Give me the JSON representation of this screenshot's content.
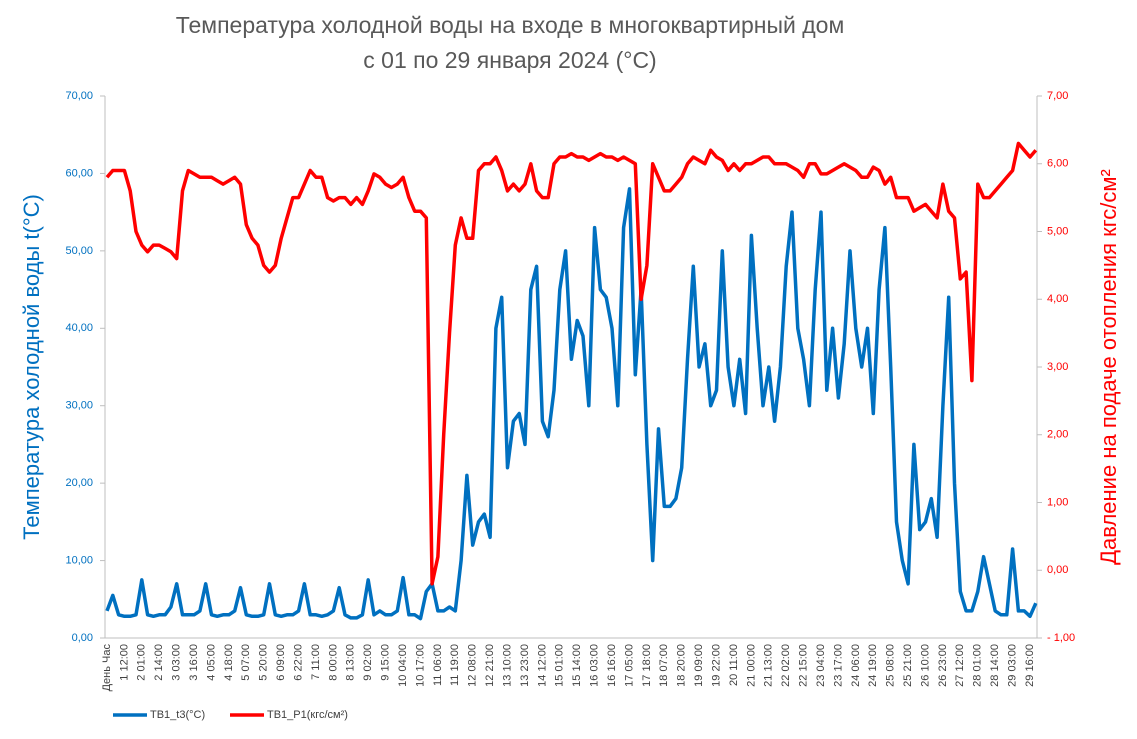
{
  "chart_data": {
    "type": "line",
    "title": "Температура холодной воды на входе в многоквартирный дом",
    "subtitle": "с 01 по 29 января 2024 (°C)",
    "y_label": "Температура холодной воды t(°С)",
    "y2_label": "Давление на подаче отопления  кгс/см²",
    "grid": false,
    "legend": "bottom-left",
    "categories": [
      "День Час",
      null,
      null,
      "1 12:00",
      null,
      null,
      "2 01:00",
      null,
      null,
      "2 14:00",
      null,
      null,
      "3 03:00",
      null,
      null,
      "3 16:00",
      null,
      null,
      "4 05:00",
      null,
      null,
      "4 18:00",
      null,
      null,
      "5 07:00",
      null,
      null,
      "5 20:00",
      null,
      null,
      "6 09:00",
      null,
      null,
      "6 22:00",
      null,
      null,
      "7 11:00",
      null,
      null,
      "8 00:00",
      null,
      null,
      "8 13:00",
      null,
      null,
      "9 02:00",
      null,
      null,
      "9 15:00",
      null,
      null,
      "10 04:00",
      null,
      null,
      "10 17:00",
      null,
      null,
      "11 06:00",
      null,
      null,
      "11 19:00",
      null,
      null,
      "12 08:00",
      null,
      null,
      "12 21:00",
      null,
      null,
      "13 10:00",
      null,
      null,
      "13 23:00",
      null,
      null,
      "14 12:00",
      null,
      null,
      "15 01:00",
      null,
      null,
      "15 14:00",
      null,
      null,
      "16 03:00",
      null,
      null,
      "16 16:00",
      null,
      null,
      "17 05:00",
      null,
      null,
      "17 18:00",
      null,
      null,
      "18 07:00",
      null,
      null,
      "18 20:00",
      null,
      null,
      "19 09:00",
      null,
      null,
      "19 22:00",
      null,
      null,
      "20 11:00",
      null,
      null,
      "21 00:00",
      null,
      null,
      "21 13:00",
      null,
      null,
      "22 02:00",
      null,
      null,
      "22 15:00",
      null,
      null,
      "23 04:00",
      null,
      null,
      "23 17:00",
      null,
      null,
      "24 06:00",
      null,
      null,
      "24 19:00",
      null,
      null,
      "25 08:00",
      null,
      null,
      "25 21:00",
      null,
      null,
      "26 10:00",
      null,
      null,
      "26 23:00",
      null,
      null,
      "27 12:00",
      null,
      null,
      "28 01:00",
      null,
      null,
      "28 14:00",
      null,
      null,
      "29 03:00",
      null,
      null,
      "29 16:00",
      null
    ],
    "series": [
      {
        "name": "ТВ1_t3(°C)",
        "color": "#0070c0",
        "values": [
          3.5,
          5.5,
          3,
          2.8,
          2.8,
          3,
          7.5,
          3,
          2.8,
          3,
          3,
          4,
          7,
          3,
          3,
          3,
          3.5,
          7,
          3,
          2.8,
          3,
          3,
          3.5,
          6.5,
          3,
          2.8,
          2.8,
          3,
          7,
          3,
          2.8,
          3,
          3,
          3.5,
          7,
          3,
          3,
          2.8,
          3,
          3.5,
          6.5,
          3,
          2.6,
          2.6,
          3,
          7.5,
          3,
          3.5,
          3,
          3,
          3.5,
          7.8,
          3,
          3,
          2.5,
          6,
          7,
          3.5,
          3.5,
          4,
          3.5,
          10,
          21,
          12,
          15,
          16,
          13,
          40,
          44,
          22,
          28,
          29,
          25,
          45,
          48,
          28,
          26,
          32,
          45,
          50,
          36,
          41,
          39,
          30,
          53,
          45,
          44,
          40,
          30,
          53,
          58,
          34,
          45,
          25,
          10,
          27,
          17,
          17,
          18,
          22,
          36,
          48,
          35,
          38,
          30,
          32,
          50,
          35,
          30,
          36,
          29,
          52,
          40,
          30,
          35,
          28,
          35,
          48,
          55,
          40,
          36,
          30,
          45,
          55,
          32,
          40,
          31,
          38,
          50,
          40,
          35,
          40,
          29,
          45,
          53,
          35,
          15,
          10,
          7,
          25,
          14,
          15,
          18,
          13,
          30,
          44,
          20,
          6,
          3.5,
          3.5,
          6,
          10.5,
          7,
          3.5,
          3,
          3,
          11.5,
          3.5,
          3.5,
          2.8,
          4.5
        ]
      },
      {
        "name": "ТВ1_P1(кгс/см²)",
        "color": "#ff0000",
        "axis": "y2",
        "values": [
          5.8,
          5.9,
          5.9,
          5.9,
          5.6,
          5.0,
          4.8,
          4.7,
          4.8,
          4.8,
          4.75,
          4.7,
          4.6,
          5.6,
          5.9,
          5.85,
          5.8,
          5.8,
          5.8,
          5.75,
          5.7,
          5.75,
          5.8,
          5.7,
          5.1,
          4.9,
          4.8,
          4.5,
          4.4,
          4.5,
          4.9,
          5.2,
          5.5,
          5.5,
          5.7,
          5.9,
          5.8,
          5.8,
          5.5,
          5.45,
          5.5,
          5.5,
          5.4,
          5.5,
          5.4,
          5.6,
          5.85,
          5.8,
          5.7,
          5.65,
          5.7,
          5.8,
          5.5,
          5.3,
          5.3,
          5.2,
          -0.2,
          0.2,
          2.0,
          3.5,
          4.8,
          5.2,
          4.9,
          4.9,
          5.9,
          6.0,
          6.0,
          6.1,
          5.9,
          5.6,
          5.7,
          5.6,
          5.7,
          6.0,
          5.6,
          5.5,
          5.5,
          6.0,
          6.1,
          6.1,
          6.15,
          6.1,
          6.1,
          6.05,
          6.1,
          6.15,
          6.1,
          6.1,
          6.05,
          6.1,
          6.05,
          6.0,
          4.0,
          4.5,
          6.0,
          5.8,
          5.6,
          5.6,
          5.7,
          5.8,
          6.0,
          6.1,
          6.05,
          6.0,
          6.2,
          6.1,
          6.05,
          5.9,
          6.0,
          5.9,
          6.0,
          6.0,
          6.05,
          6.1,
          6.1,
          6.0,
          6.0,
          6.0,
          5.95,
          5.9,
          5.8,
          6.0,
          6.0,
          5.85,
          5.85,
          5.9,
          5.95,
          6.0,
          5.95,
          5.9,
          5.8,
          5.8,
          5.95,
          5.9,
          5.7,
          5.8,
          5.5,
          5.5,
          5.5,
          5.3,
          5.35,
          5.4,
          5.3,
          5.2,
          5.7,
          5.3,
          5.2,
          4.3,
          4.4,
          2.8,
          5.7,
          5.5,
          5.5,
          5.6,
          5.7,
          5.8,
          5.9,
          6.3,
          6.2,
          6.1,
          6.2
        ]
      }
    ],
    "ylim": [
      0,
      70
    ],
    "yticks": [
      {
        "value": 0,
        "label": "0,00"
      },
      {
        "value": 10,
        "label": "10,00"
      },
      {
        "value": 20,
        "label": "20,00"
      },
      {
        "value": 30,
        "label": "30,00"
      },
      {
        "value": 40,
        "label": "40,00"
      },
      {
        "value": 50,
        "label": "50,00"
      },
      {
        "value": 60,
        "label": "60,00"
      },
      {
        "value": 70,
        "label": "70,00"
      }
    ],
    "y2lim": [
      -1,
      7
    ],
    "y2ticks": [
      {
        "value": -1,
        "label": "- 1,00"
      },
      {
        "value": 0,
        "label": "0,00"
      },
      {
        "value": 1,
        "label": "1,00"
      },
      {
        "value": 2,
        "label": "2,00"
      },
      {
        "value": 3,
        "label": "3,00"
      },
      {
        "value": 4,
        "label": "4,00"
      },
      {
        "value": 5,
        "label": "5,00"
      },
      {
        "value": 6,
        "label": "6,00"
      },
      {
        "value": 7,
        "label": "7,00"
      }
    ]
  }
}
